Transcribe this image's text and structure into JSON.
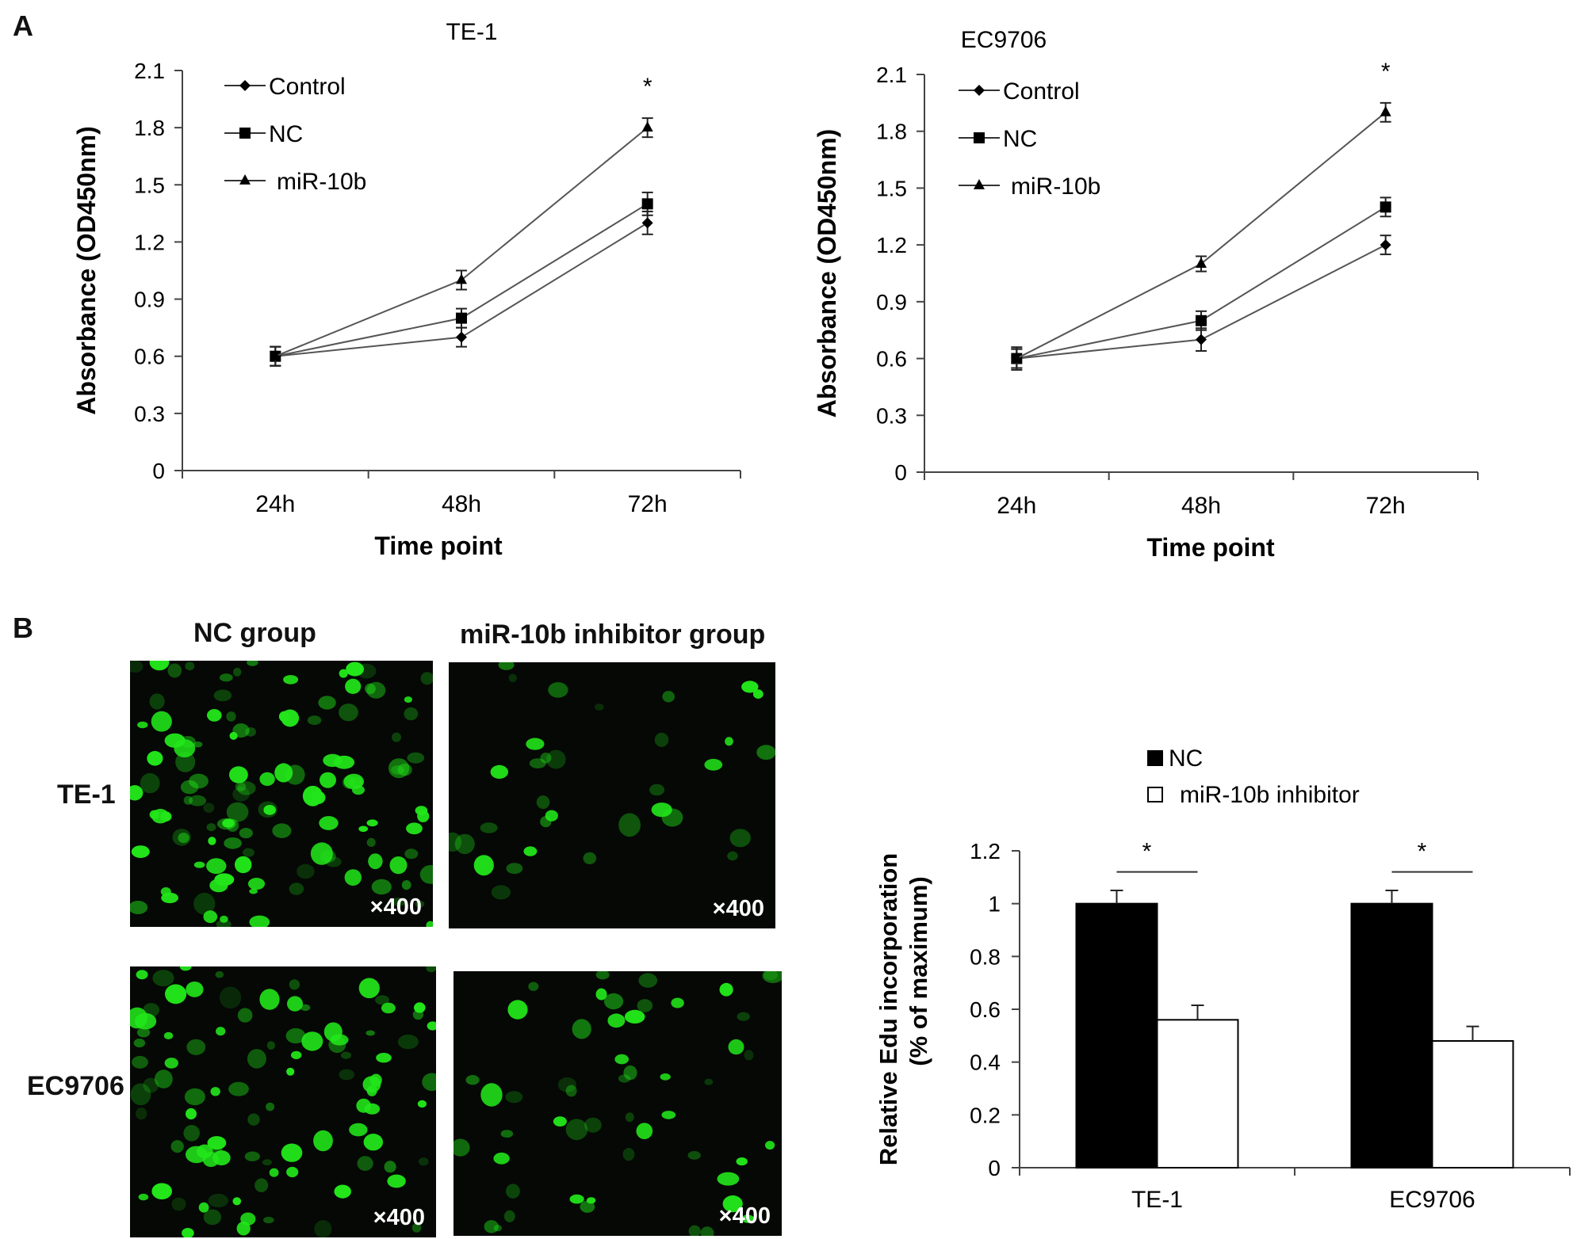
{
  "panel_labels": {
    "a": "A",
    "b": "B"
  },
  "chart_data": [
    {
      "type": "line",
      "title": "TE-1",
      "xlabel": "Time point",
      "ylabel": "Absorbance (OD450nm)",
      "categories": [
        "24h",
        "48h",
        "72h"
      ],
      "ylim": [
        0,
        2.1
      ],
      "yticks": [
        0,
        0.3,
        0.6,
        0.9,
        1.2,
        1.5,
        1.8,
        2.1
      ],
      "ytick_labels": [
        "0",
        "0.3",
        "0.6",
        "0.9",
        "1.2",
        "1.5",
        "1.8",
        "2.1"
      ],
      "legend_position": "top-left",
      "grid": false,
      "series": [
        {
          "name": "Control",
          "marker": "diamond",
          "values": [
            0.6,
            0.7,
            1.3
          ],
          "errors": [
            0.05,
            0.05,
            0.06
          ]
        },
        {
          "name": "NC",
          "marker": "square",
          "values": [
            0.6,
            0.8,
            1.4
          ],
          "errors": [
            0.05,
            0.05,
            0.06
          ]
        },
        {
          "name": "miR-10b",
          "marker": "triangle",
          "values": [
            0.6,
            1.0,
            1.8
          ],
          "errors": [
            0.05,
            0.05,
            0.05
          ]
        }
      ],
      "annotations": [
        {
          "text": "*",
          "category": "72h"
        }
      ]
    },
    {
      "type": "line",
      "title": "EC9706",
      "xlabel": "Time point",
      "ylabel": "Absorbance (OD450nm)",
      "categories": [
        "24h",
        "48h",
        "72h"
      ],
      "ylim": [
        0,
        2.1
      ],
      "yticks": [
        0,
        0.3,
        0.6,
        0.9,
        1.2,
        1.5,
        1.8,
        2.1
      ],
      "ytick_labels": [
        "0",
        "0.3",
        "0.6",
        "0.9",
        "1.2",
        "1.5",
        "1.8",
        "2.1"
      ],
      "legend_position": "top-left",
      "grid": false,
      "series": [
        {
          "name": "Control",
          "marker": "diamond",
          "values": [
            0.6,
            0.7,
            1.2
          ],
          "errors": [
            0.06,
            0.06,
            0.05
          ]
        },
        {
          "name": "NC",
          "marker": "square",
          "values": [
            0.6,
            0.8,
            1.4
          ],
          "errors": [
            0.05,
            0.05,
            0.05
          ]
        },
        {
          "name": "miR-10b",
          "marker": "triangle",
          "values": [
            0.6,
            1.1,
            1.9
          ],
          "errors": [
            0.05,
            0.04,
            0.05
          ]
        }
      ],
      "annotations": [
        {
          "text": "*",
          "category": "72h"
        }
      ]
    },
    {
      "type": "bar",
      "title": "",
      "xlabel": "",
      "ylabel": "Relative Edu incorporation",
      "ylabel2": "(% of  maximum)",
      "categories": [
        "TE-1",
        "EC9706"
      ],
      "ylim": [
        0,
        1.2
      ],
      "yticks": [
        0,
        0.2,
        0.4,
        0.6,
        0.8,
        1.0,
        1.2
      ],
      "ytick_labels": [
        "0",
        "0.2",
        "0.4",
        "0.6",
        "0.8",
        "1",
        "1.2"
      ],
      "legend_position": "top-left",
      "grid": false,
      "series": [
        {
          "name": "NC",
          "color": "#000000",
          "values": [
            1.0,
            1.0
          ],
          "errors": [
            0.05,
            0.05
          ]
        },
        {
          "name": "miR-10b inhibitor",
          "color": "#ffffff",
          "values": [
            0.56,
            0.48
          ],
          "errors": [
            0.055,
            0.055
          ]
        }
      ],
      "annotations": [
        {
          "text": "*",
          "category": "TE-1"
        },
        {
          "text": "*",
          "category": "EC9706"
        }
      ]
    }
  ],
  "micrographs": {
    "column_labels": [
      "NC group",
      "miR-10b inhibitor  group"
    ],
    "row_labels": [
      "TE-1",
      "EC9706"
    ],
    "magnification": "×400",
    "fluorescence_color": "#22e61a",
    "background_color": "#050805"
  }
}
